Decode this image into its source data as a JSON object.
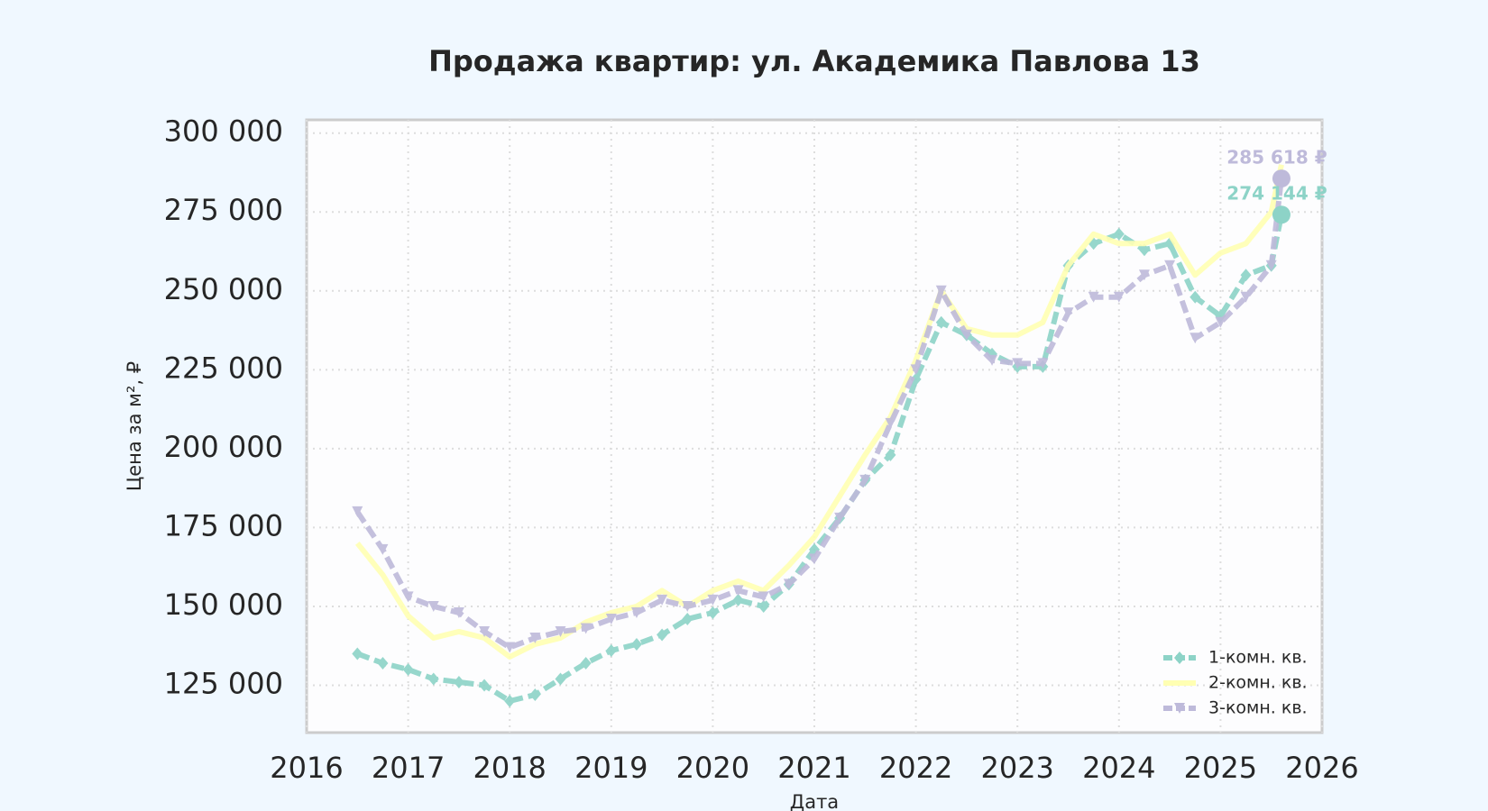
{
  "chart_data": {
    "type": "line",
    "title": "Продажа квартир: ул. Академика Павлова 13",
    "x_label": "Дата",
    "y_label": "Цена за м², ₽",
    "xlim": [
      2016,
      2026
    ],
    "xticks": [
      2016,
      2017,
      2018,
      2019,
      2020,
      2021,
      2022,
      2023,
      2024,
      2025,
      2026
    ],
    "ylim": [
      110000,
      304200
    ],
    "yticks": [
      {
        "value": 125000,
        "label": "125 000"
      },
      {
        "value": 150000,
        "label": "150 000"
      },
      {
        "value": 175000,
        "label": "175 000"
      },
      {
        "value": 200000,
        "label": "200 000"
      },
      {
        "value": 225000,
        "label": "225 000"
      },
      {
        "value": 250000,
        "label": "250 000"
      },
      {
        "value": 275000,
        "label": "275 000"
      },
      {
        "value": 300000,
        "label": "300 000"
      }
    ],
    "grid": true,
    "legend": "lower right",
    "x": [
      2016.5,
      2016.75,
      2017.0,
      2017.25,
      2017.5,
      2017.75,
      2018.0,
      2018.25,
      2018.5,
      2018.75,
      2019.0,
      2019.25,
      2019.5,
      2019.75,
      2020.0,
      2020.25,
      2020.5,
      2020.75,
      2021.0,
      2021.25,
      2021.5,
      2021.75,
      2022.0,
      2022.25,
      2022.5,
      2022.75,
      2023.0,
      2023.25,
      2023.5,
      2023.75,
      2024.0,
      2024.25,
      2024.5,
      2024.75,
      2025.0,
      2025.25,
      2025.5,
      2025.6
    ],
    "series": [
      {
        "name": "1-комн. кв.",
        "color": "#8dd3c7",
        "marker": "diamond",
        "dashed": true,
        "values": [
          135000,
          132000,
          130000,
          127000,
          126000,
          125000,
          120000,
          122000,
          127000,
          132000,
          136000,
          138000,
          141000,
          146000,
          148000,
          152000,
          150000,
          157000,
          168000,
          178000,
          190000,
          198000,
          222000,
          240000,
          236000,
          230000,
          226000,
          226000,
          258000,
          265000,
          268000,
          263000,
          265000,
          248000,
          242000,
          255000,
          258000,
          274144
        ]
      },
      {
        "name": "2-комн. кв.",
        "color": "#ffffb3",
        "marker": "none",
        "dashed": false,
        "values": [
          170000,
          160000,
          147000,
          140000,
          142000,
          140000,
          134000,
          138000,
          140000,
          145000,
          148000,
          150000,
          155000,
          150000,
          155000,
          158000,
          155000,
          163000,
          172000,
          185000,
          198000,
          210000,
          228000,
          250000,
          238000,
          236000,
          236000,
          240000,
          258000,
          268000,
          265000,
          265000,
          268000,
          255000,
          262000,
          265000,
          275000,
          290000
        ]
      },
      {
        "name": "3-комн. кв.",
        "color": "#bebada",
        "marker": "triangle",
        "dashed": true,
        "values": [
          180000,
          168000,
          153000,
          150000,
          148000,
          142000,
          137000,
          140000,
          142000,
          143000,
          146000,
          148000,
          152000,
          150000,
          152000,
          155000,
          153000,
          157000,
          165000,
          178000,
          190000,
          208000,
          225000,
          250000,
          236000,
          228000,
          227000,
          227000,
          243000,
          248000,
          248000,
          255000,
          258000,
          235000,
          240000,
          248000,
          258000,
          285618
        ]
      }
    ],
    "annotations": [
      {
        "text": "285 618 ₽",
        "x": 2025.6,
        "y": 285618,
        "color": "#bebada"
      },
      {
        "text": "274 144 ₽",
        "x": 2025.6,
        "y": 274144,
        "color": "#8dd3c7"
      }
    ]
  }
}
